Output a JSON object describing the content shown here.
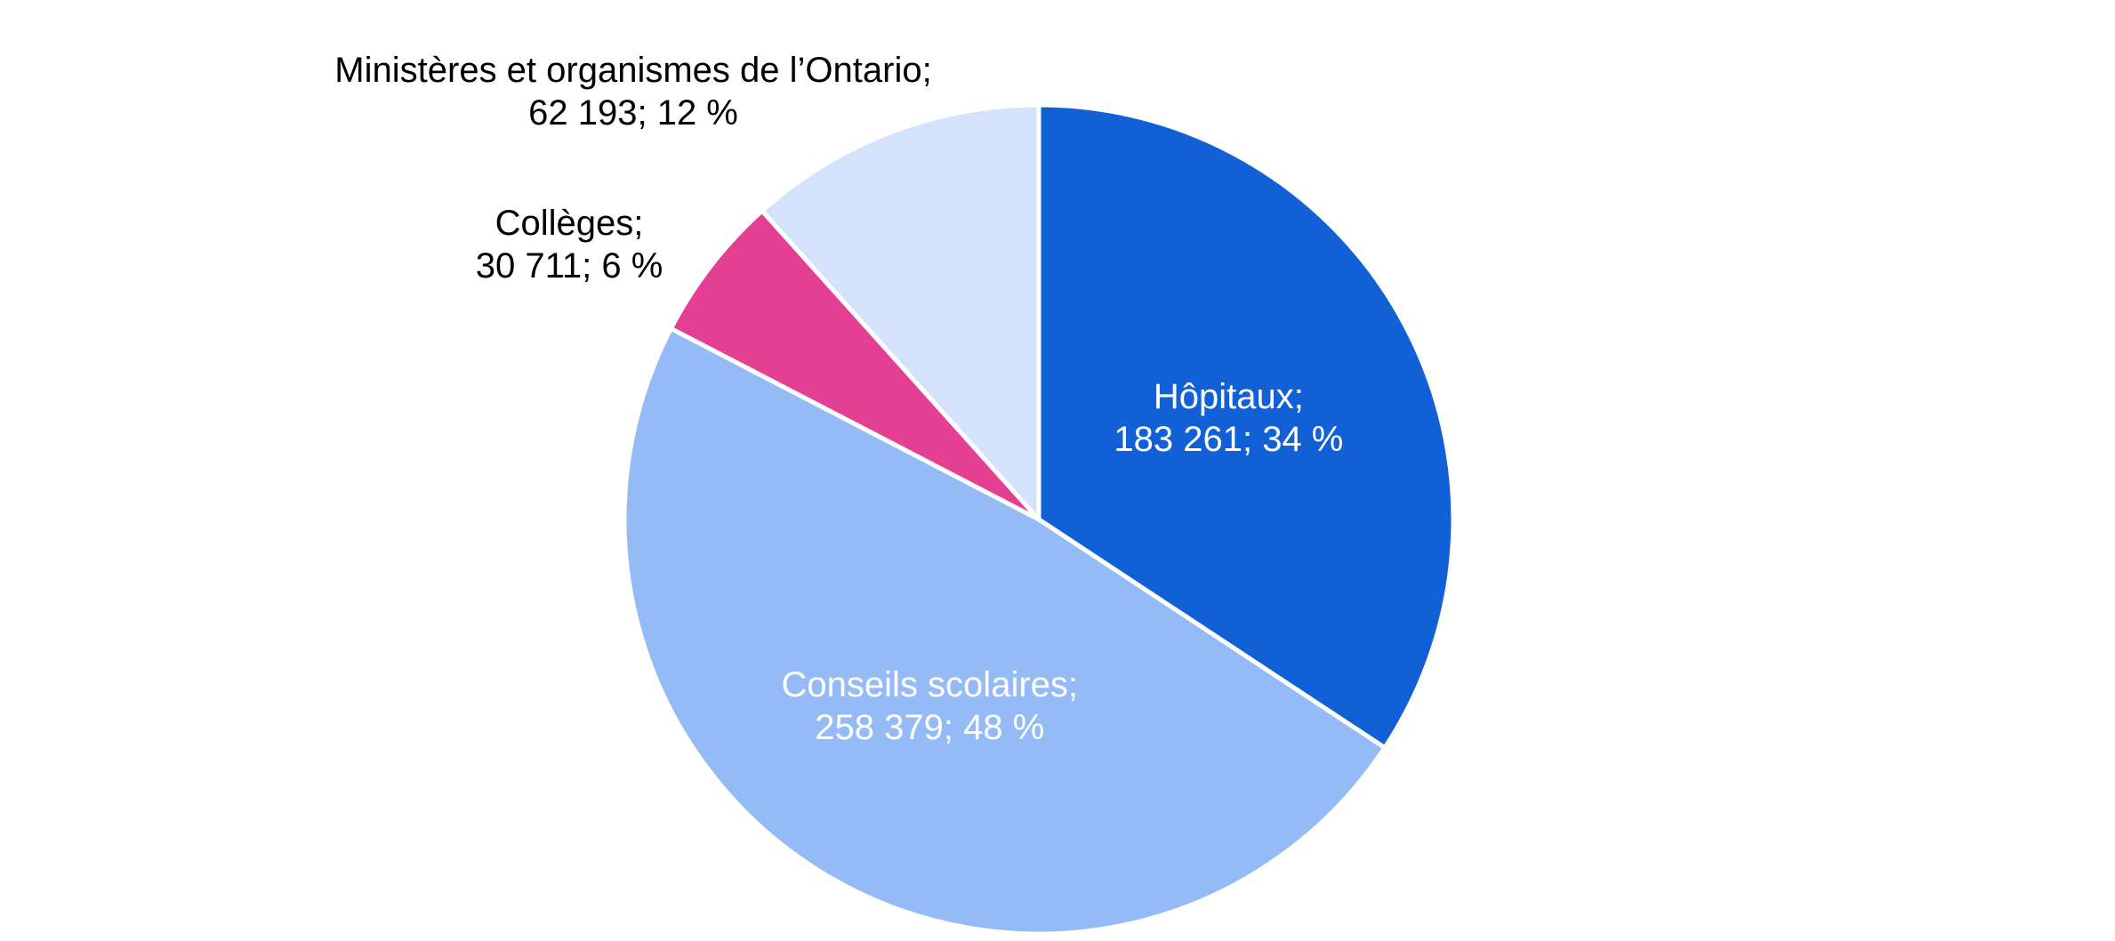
{
  "chart_data": {
    "type": "pie",
    "start_angle_deg": 0,
    "direction": "clockwise",
    "slices": [
      {
        "label": "Hôpitaux;",
        "value": 183261,
        "value_text": "183 261; 34 %",
        "percent": 34,
        "color": "#1160D6",
        "label_color": "#ffffff",
        "label_position": "inside"
      },
      {
        "label": "Conseils scolaires;",
        "value": 258379,
        "value_text": "258 379; 48 %",
        "percent": 48,
        "color": "#95BBF7",
        "label_color": "#ffffff",
        "label_position": "inside"
      },
      {
        "label": "Collèges;",
        "value": 30711,
        "value_text": "30 711; 6 %",
        "percent": 6,
        "color": "#E43F92",
        "label_color": "#000000",
        "label_position": "outside"
      },
      {
        "label": "Ministères et organismes de l’Ontario;",
        "value": 62193,
        "value_text": "62 193; 12 %",
        "percent": 12,
        "color": "#D4E3FB",
        "label_color": "#000000",
        "label_position": "outside"
      }
    ]
  }
}
